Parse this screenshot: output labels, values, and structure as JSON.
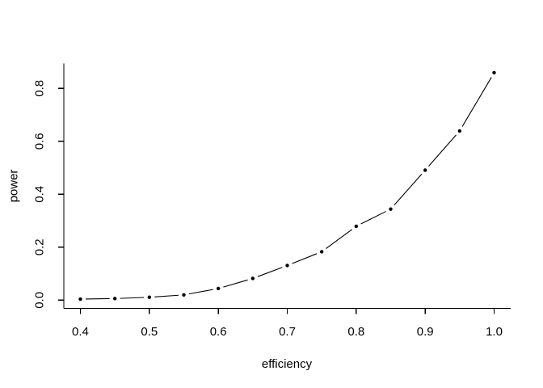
{
  "window": {
    "background": "#ffffff"
  },
  "chart_data": {
    "type": "line",
    "title": "",
    "xlabel": "efficiency",
    "ylabel": "power",
    "x": [
      0.4,
      0.45,
      0.5,
      0.55,
      0.6,
      0.65,
      0.7,
      0.75,
      0.8,
      0.85,
      0.9,
      0.95,
      1.0
    ],
    "series": [
      {
        "name": "power",
        "values": [
          0.004,
          0.006,
          0.011,
          0.02,
          0.044,
          0.082,
          0.131,
          0.183,
          0.279,
          0.344,
          0.491,
          0.639,
          0.859
        ]
      }
    ],
    "x_ticks": [
      0.4,
      0.5,
      0.6,
      0.7,
      0.8,
      0.9,
      1.0
    ],
    "y_ticks": [
      0.0,
      0.2,
      0.4,
      0.6,
      0.8
    ],
    "x_tick_decimals": 1,
    "y_tick_decimals": 1,
    "xlim": [
      0.376,
      1.024
    ],
    "ylim": [
      -0.031,
      0.894
    ],
    "grid": false,
    "legend": false,
    "marker": "filled-circle",
    "line_style": "solid-segments-with-gaps-at-points",
    "axes_style": "L-left-bottom",
    "color": "#000000",
    "background": "#ffffff"
  }
}
